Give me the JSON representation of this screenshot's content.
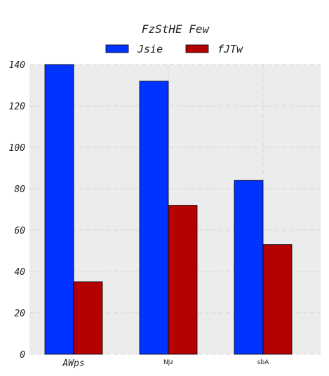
{
  "chart_data": {
    "type": "bar",
    "title": "FzStHE Few",
    "xlabel": "",
    "ylabel": "",
    "categories": [
      "AWps",
      "NJz",
      "sbA"
    ],
    "series": [
      {
        "name": "Jsie",
        "values": [
          140,
          132,
          84
        ],
        "color": "#0033ff"
      },
      {
        "name": "fJTw",
        "values": [
          35,
          72,
          53
        ],
        "color": "#b30000"
      }
    ],
    "ylim": [
      0,
      140
    ],
    "yticks": [
      "0",
      "20",
      "40",
      "60",
      "80",
      "100",
      "120",
      "140"
    ],
    "grid": true,
    "legend_position": "top-center",
    "plot_background": "#ececec"
  }
}
